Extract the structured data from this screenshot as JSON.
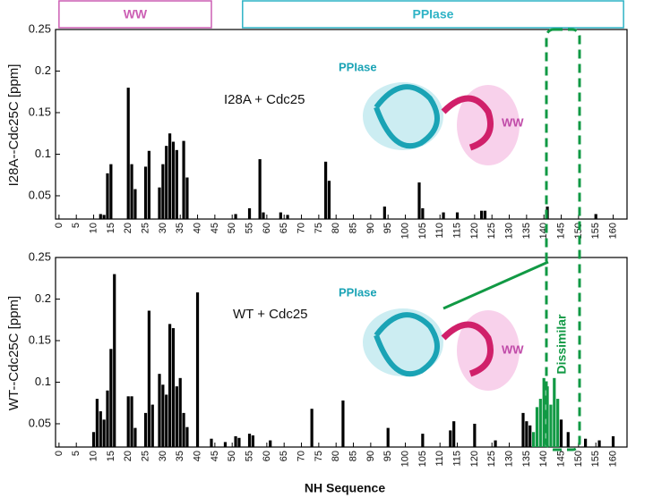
{
  "chart_data": [
    {
      "type": "bar",
      "annotation": "I28A + Cdc25",
      "ylabel": "I28A--Cdc25C  [ppm]",
      "domains": [
        {
          "label": "WW",
          "start": 0,
          "end": 44,
          "color": "#cc5fb4"
        },
        {
          "label": "PPIase",
          "start": 53,
          "end": 163,
          "color": "#2fb3c6"
        }
      ],
      "inset_labels": [
        "PPIase",
        "WW"
      ],
      "x": [
        12,
        13,
        14,
        15,
        20,
        21,
        22,
        25,
        26,
        29,
        30,
        31,
        32,
        33,
        34,
        36,
        37,
        51,
        55,
        58,
        59,
        64,
        66,
        77,
        78,
        94,
        104,
        105,
        111,
        115,
        122,
        123,
        141,
        155
      ],
      "values": [
        0.028,
        0.027,
        0.077,
        0.088,
        0.18,
        0.088,
        0.058,
        0.085,
        0.104,
        0.06,
        0.088,
        0.11,
        0.125,
        0.115,
        0.105,
        0.116,
        0.072,
        0.028,
        0.035,
        0.094,
        0.03,
        0.03,
        0.027,
        0.091,
        0.068,
        0.037,
        0.066,
        0.035,
        0.03,
        0.03,
        0.032,
        0.032,
        0.037,
        0.028
      ],
      "color": "#000000",
      "xlim": [
        -1,
        164
      ],
      "xticks": [
        0,
        5,
        10,
        15,
        20,
        25,
        30,
        35,
        40,
        45,
        50,
        55,
        60,
        65,
        70,
        75,
        80,
        85,
        90,
        95,
        100,
        105,
        110,
        115,
        120,
        125,
        130,
        135,
        140,
        145,
        150,
        155,
        160
      ],
      "ylim": [
        0.022,
        0.25
      ],
      "yticks": [
        0.05,
        0.1,
        0.15,
        0.2,
        0.25
      ]
    },
    {
      "type": "bar",
      "annotation": "WT + Cdc25",
      "ylabel": "WT--Cdc25C  [ppm]",
      "xlabel": "NH Sequence",
      "inset_labels": [
        "PPIase",
        "WW",
        "Dissimilar"
      ],
      "x": [
        10,
        11,
        12,
        13,
        14,
        15,
        16,
        20,
        21,
        22,
        25,
        26,
        27,
        29,
        30,
        31,
        32,
        33,
        34,
        35,
        36,
        37,
        40,
        44,
        48,
        51,
        52,
        55,
        56,
        61,
        73,
        82,
        95,
        105,
        113,
        114,
        120,
        126,
        134,
        135,
        136,
        137,
        138,
        139,
        140,
        141,
        142,
        143,
        144,
        145,
        147,
        152,
        156,
        160
      ],
      "values": [
        0.04,
        0.08,
        0.065,
        0.055,
        0.09,
        0.14,
        0.23,
        0.083,
        0.083,
        0.045,
        0.063,
        0.186,
        0.073,
        0.11,
        0.097,
        0.085,
        0.17,
        0.165,
        0.095,
        0.105,
        0.063,
        0.046,
        0.208,
        0.032,
        0.028,
        0.035,
        0.033,
        0.038,
        0.036,
        0.03,
        0.068,
        0.078,
        0.045,
        0.038,
        0.042,
        0.053,
        0.05,
        0.03,
        0.063,
        0.053,
        0.048,
        0.04,
        0.07,
        0.08,
        0.105,
        0.095,
        0.073,
        0.105,
        0.08,
        0.055,
        0.04,
        0.032,
        0.03,
        0.035
      ],
      "colors": [
        "#000000",
        "#000000",
        "#000000",
        "#000000",
        "#000000",
        "#000000",
        "#000000",
        "#000000",
        "#000000",
        "#000000",
        "#000000",
        "#000000",
        "#000000",
        "#000000",
        "#000000",
        "#000000",
        "#000000",
        "#000000",
        "#000000",
        "#000000",
        "#000000",
        "#000000",
        "#000000",
        "#000000",
        "#000000",
        "#000000",
        "#000000",
        "#000000",
        "#000000",
        "#000000",
        "#000000",
        "#000000",
        "#000000",
        "#000000",
        "#000000",
        "#000000",
        "#000000",
        "#000000",
        "#000000",
        "#000000",
        "#000000",
        "#119944",
        "#119944",
        "#119944",
        "#119944",
        "#119944",
        "#119944",
        "#119944",
        "#119944",
        "#000000",
        "#000000",
        "#000000",
        "#000000",
        "#000000"
      ],
      "xlim": [
        -1,
        164
      ],
      "xticks": [
        0,
        5,
        10,
        15,
        20,
        25,
        30,
        35,
        40,
        45,
        50,
        55,
        60,
        65,
        70,
        75,
        80,
        85,
        90,
        95,
        100,
        105,
        110,
        115,
        120,
        125,
        130,
        135,
        140,
        145,
        150,
        155,
        160
      ],
      "ylim": [
        0.022,
        0.25
      ],
      "yticks": [
        0.05,
        0.1,
        0.15,
        0.2,
        0.25
      ]
    }
  ]
}
